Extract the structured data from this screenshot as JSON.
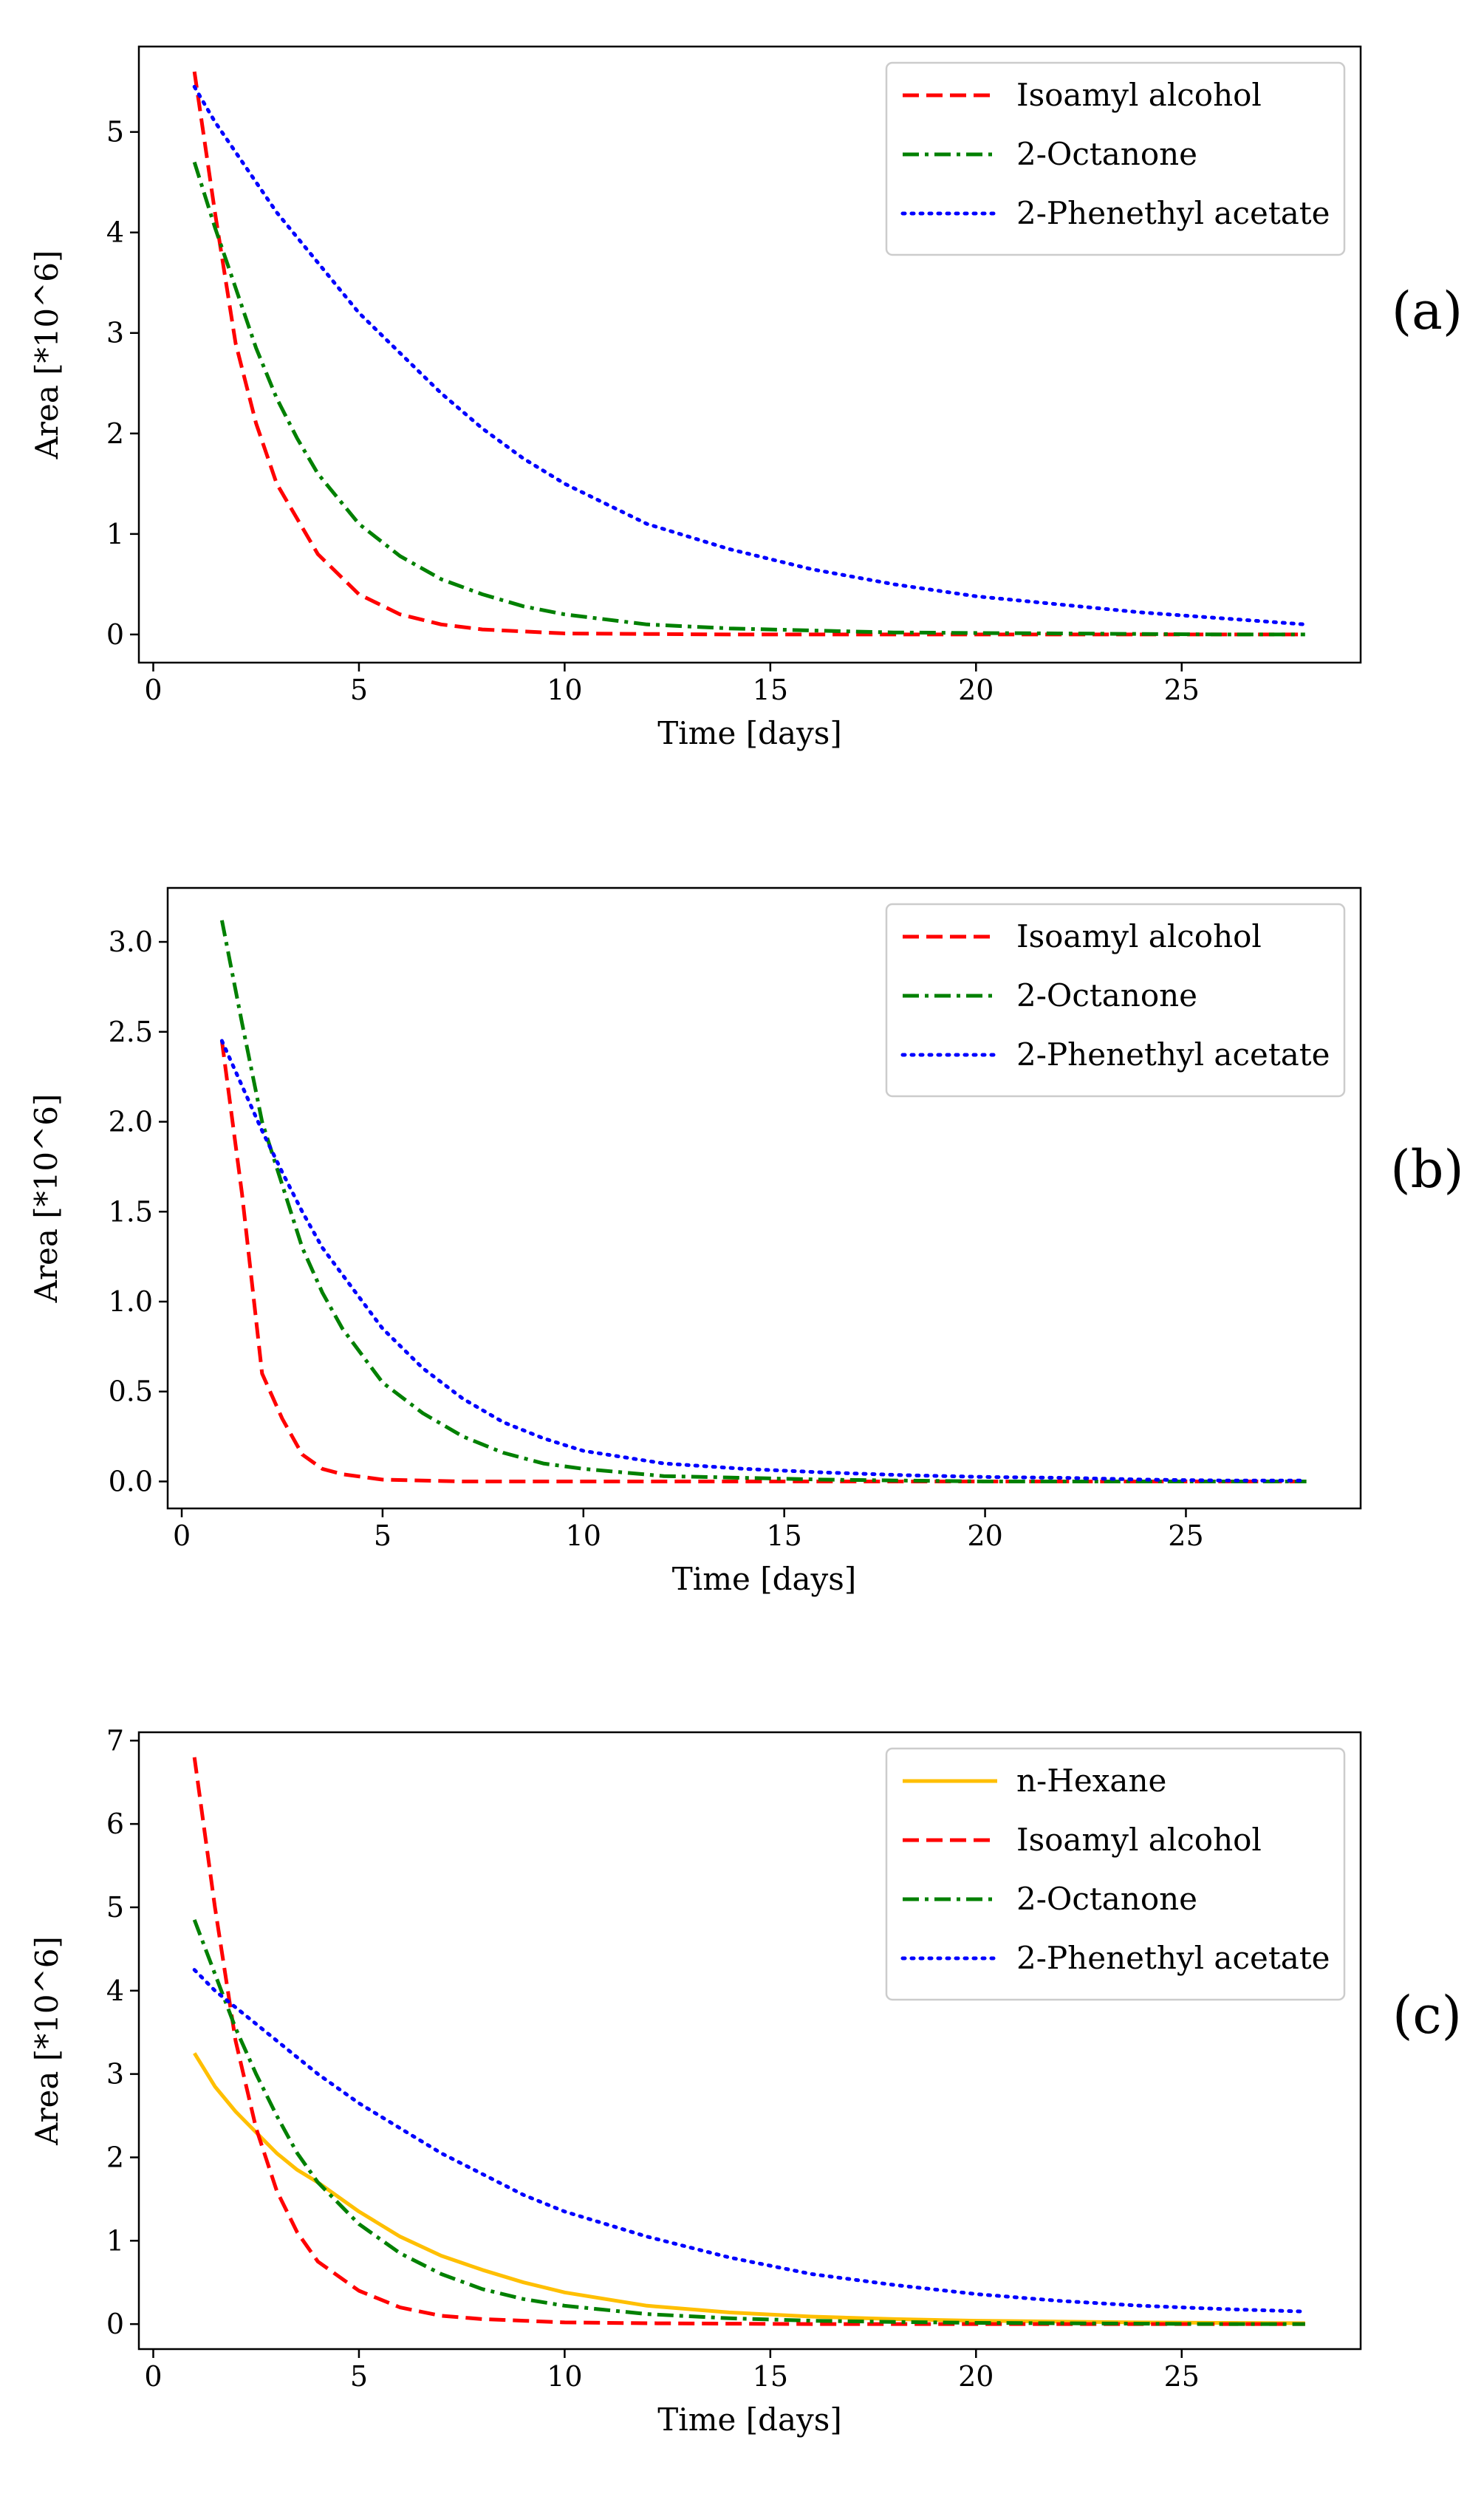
{
  "chart_data": [
    {
      "type": "line",
      "panel_label": "(a)",
      "xlabel": "Time [days]",
      "ylabel": "Area [*10^6]",
      "xlim": [
        -0.35,
        29.35
      ],
      "ylim": [
        -0.28,
        5.85
      ],
      "xticks": [
        0,
        5,
        10,
        15,
        20,
        25
      ],
      "yticks": [
        0,
        1,
        2,
        3,
        4,
        5
      ],
      "legend_position": "top-right",
      "x": [
        1,
        1.5,
        2,
        2.5,
        3,
        3.5,
        4,
        5,
        6,
        7,
        8,
        9,
        10,
        12,
        14,
        16,
        18,
        20,
        22,
        24,
        26,
        28
      ],
      "series": [
        {
          "name": "Isoamyl alcohol",
          "color": "#ff0000",
          "style": "dashed",
          "values": [
            5.6,
            4.2,
            2.9,
            2.1,
            1.5,
            1.15,
            0.8,
            0.4,
            0.2,
            0.1,
            0.05,
            0.03,
            0.01,
            0.005,
            0,
            0,
            0,
            0,
            0,
            0,
            0,
            0
          ]
        },
        {
          "name": "2-Octanone",
          "color": "#008000",
          "style": "dashdot",
          "values": [
            4.7,
            4.05,
            3.45,
            2.85,
            2.35,
            1.95,
            1.6,
            1.1,
            0.78,
            0.55,
            0.4,
            0.28,
            0.2,
            0.1,
            0.06,
            0.04,
            0.02,
            0.015,
            0.01,
            0.005,
            0,
            0
          ]
        },
        {
          "name": "2-Phenethyl acetate",
          "color": "#0000ff",
          "style": "dotted",
          "values": [
            5.45,
            5.1,
            4.8,
            4.5,
            4.2,
            3.95,
            3.7,
            3.2,
            2.8,
            2.4,
            2.05,
            1.75,
            1.5,
            1.1,
            0.85,
            0.65,
            0.5,
            0.38,
            0.3,
            0.22,
            0.16,
            0.1
          ]
        }
      ]
    },
    {
      "type": "line",
      "panel_label": "(b)",
      "xlabel": "Time [days]",
      "ylabel": "Area [*10^6]",
      "xlim": [
        -0.35,
        29.35
      ],
      "ylim": [
        -0.15,
        3.3
      ],
      "xticks": [
        0,
        5,
        10,
        15,
        20,
        25
      ],
      "yticks": [
        0.0,
        0.5,
        1.0,
        1.5,
        2.0,
        2.5,
        3.0
      ],
      "legend_position": "top-right",
      "x": [
        1,
        1.5,
        2,
        2.5,
        3,
        3.5,
        4,
        5,
        6,
        7,
        8,
        9,
        10,
        12,
        14,
        16,
        18,
        20,
        22,
        24,
        26,
        28
      ],
      "series": [
        {
          "name": "Isoamyl alcohol",
          "color": "#ff0000",
          "style": "dashed",
          "values": [
            2.45,
            1.6,
            0.6,
            0.35,
            0.15,
            0.07,
            0.04,
            0.01,
            0.005,
            0,
            0,
            0,
            0,
            0,
            0,
            0,
            0,
            0,
            0,
            0,
            0,
            0
          ]
        },
        {
          "name": "2-Octanone",
          "color": "#008000",
          "style": "dashdot",
          "values": [
            3.12,
            2.55,
            2.0,
            1.65,
            1.3,
            1.05,
            0.85,
            0.55,
            0.38,
            0.25,
            0.16,
            0.1,
            0.07,
            0.03,
            0.02,
            0.01,
            0.005,
            0,
            0,
            0,
            0,
            0
          ]
        },
        {
          "name": "2-Phenethyl acetate",
          "color": "#0000ff",
          "style": "dotted",
          "values": [
            2.45,
            2.2,
            1.95,
            1.72,
            1.5,
            1.3,
            1.15,
            0.85,
            0.63,
            0.46,
            0.33,
            0.24,
            0.17,
            0.1,
            0.07,
            0.05,
            0.035,
            0.025,
            0.02,
            0.01,
            0.005,
            0.005
          ]
        }
      ]
    },
    {
      "type": "line",
      "panel_label": "(c)",
      "xlabel": "Time [days]",
      "ylabel": "Area [*10^6]",
      "xlim": [
        -0.35,
        29.35
      ],
      "ylim": [
        -0.3,
        7.1
      ],
      "xticks": [
        0,
        5,
        10,
        15,
        20,
        25
      ],
      "yticks": [
        0,
        1,
        2,
        3,
        4,
        5,
        6,
        7
      ],
      "legend_position": "top-right",
      "x": [
        1,
        1.5,
        2,
        2.5,
        3,
        3.5,
        4,
        5,
        6,
        7,
        8,
        9,
        10,
        12,
        14,
        16,
        18,
        20,
        22,
        24,
        26,
        28
      ],
      "series": [
        {
          "name": "n-Hexane",
          "color": "#ffbf00",
          "style": "solid",
          "values": [
            3.25,
            2.85,
            2.55,
            2.3,
            2.05,
            1.85,
            1.7,
            1.35,
            1.05,
            0.82,
            0.65,
            0.5,
            0.38,
            0.22,
            0.14,
            0.09,
            0.06,
            0.04,
            0.03,
            0.02,
            0.015,
            0.01
          ]
        },
        {
          "name": "Isoamyl alcohol",
          "color": "#ff0000",
          "style": "dashed",
          "values": [
            6.8,
            5.0,
            3.4,
            2.35,
            1.6,
            1.1,
            0.75,
            0.4,
            0.2,
            0.1,
            0.06,
            0.04,
            0.02,
            0.01,
            0.005,
            0,
            0,
            0,
            0,
            0,
            0,
            0
          ]
        },
        {
          "name": "2-Octanone",
          "color": "#008000",
          "style": "dashdot",
          "values": [
            4.85,
            4.2,
            3.55,
            3.0,
            2.5,
            2.05,
            1.7,
            1.2,
            0.85,
            0.6,
            0.42,
            0.3,
            0.22,
            0.12,
            0.07,
            0.04,
            0.025,
            0.015,
            0.01,
            0.005,
            0,
            0
          ]
        },
        {
          "name": "2-Phenethyl acetate",
          "color": "#0000ff",
          "style": "dotted",
          "values": [
            4.25,
            4.0,
            3.8,
            3.6,
            3.4,
            3.2,
            3.0,
            2.65,
            2.35,
            2.05,
            1.8,
            1.55,
            1.35,
            1.05,
            0.8,
            0.6,
            0.47,
            0.36,
            0.28,
            0.22,
            0.18,
            0.15
          ]
        }
      ]
    }
  ]
}
